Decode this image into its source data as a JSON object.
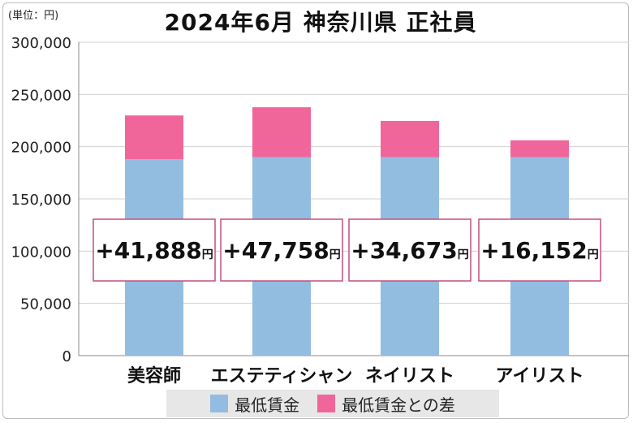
{
  "unit_note": "(単位：円)",
  "colors": {
    "base": "#93bde0",
    "diff": "#f1669a",
    "box_border": "#c24f7f",
    "grid": "#d0d0d0"
  },
  "chart_data": {
    "type": "bar",
    "title": "2024年6月 神奈川県 正社員",
    "categories": [
      "美容師",
      "エステティシャン",
      "ネイリスト",
      "アイリスト"
    ],
    "series": [
      {
        "name": "最低賃金",
        "values": [
          188000,
          190000,
          190000,
          190000
        ]
      },
      {
        "name": "最低賃金との差",
        "values": [
          41888,
          47758,
          34673,
          16152
        ]
      }
    ],
    "annotations": [
      {
        "sign": "+",
        "num": "41,888",
        "unit": "円"
      },
      {
        "sign": "+",
        "num": "47,758",
        "unit": "円"
      },
      {
        "sign": "+",
        "num": "34,673",
        "unit": "円"
      },
      {
        "sign": "+",
        "num": "16,152",
        "unit": "円"
      }
    ],
    "yticks": [
      "0",
      "50,000",
      "100,000",
      "150,000",
      "200,000",
      "250,000",
      "300,000"
    ],
    "ylim": [
      0,
      300000
    ],
    "grid": true,
    "legend_position": "bottom",
    "stacked": true
  }
}
